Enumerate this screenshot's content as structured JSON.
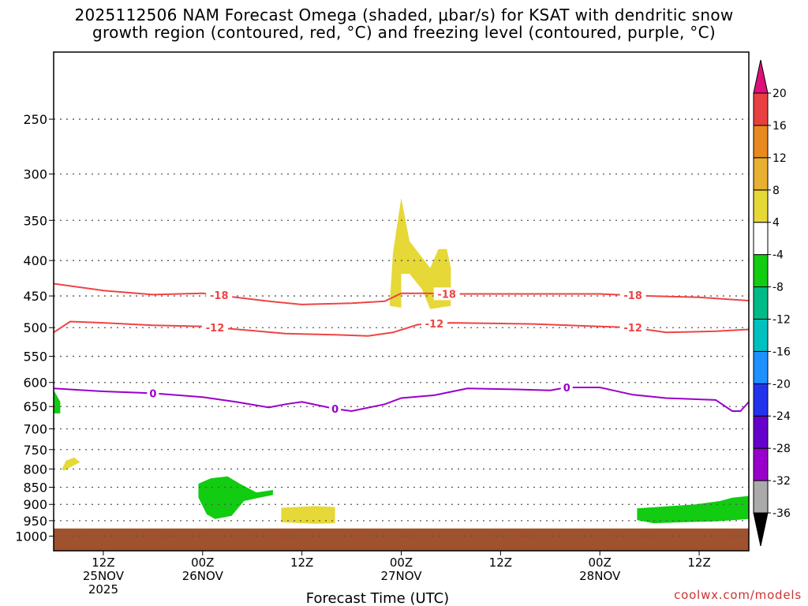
{
  "title_line1": "2025112506 NAM Forecast Omega (shaded, μbar/s) for KSAT with dendritic snow",
  "title_line2": "growth region (contoured, red, °C) and freezing level (contoured, purple, °C)",
  "credit": "coolwx.com/models",
  "chart_data": {
    "type": "time-height cross section",
    "xlabel": "Forecast Time (UTC)",
    "ylabel": "",
    "x_range_hours": [
      0,
      84
    ],
    "y_range_mb": [
      200,
      1050
    ],
    "y_ticks": [
      250,
      300,
      350,
      400,
      450,
      500,
      550,
      600,
      650,
      700,
      750,
      800,
      850,
      900,
      950,
      1000
    ],
    "x_ticks": [
      {
        "hour": 6,
        "label": "12Z",
        "sub1": "25NOV",
        "sub2": "2025"
      },
      {
        "hour": 18,
        "label": "00Z",
        "sub1": "26NOV",
        "sub2": ""
      },
      {
        "hour": 30,
        "label": "12Z",
        "sub1": "",
        "sub2": ""
      },
      {
        "hour": 42,
        "label": "00Z",
        "sub1": "27NOV",
        "sub2": ""
      },
      {
        "hour": 54,
        "label": "12Z",
        "sub1": "",
        "sub2": ""
      },
      {
        "hour": 66,
        "label": "00Z",
        "sub1": "28NOV",
        "sub2": ""
      },
      {
        "hour": 78,
        "label": "12Z",
        "sub1": "",
        "sub2": ""
      }
    ],
    "contours": [
      {
        "name": "dendritic -18C",
        "color": "#ee4444",
        "label": "-18",
        "points": [
          [
            0,
            432
          ],
          [
            6,
            442
          ],
          [
            12,
            448
          ],
          [
            18,
            446
          ],
          [
            26,
            458
          ],
          [
            30,
            463
          ],
          [
            36,
            461
          ],
          [
            40,
            458
          ],
          [
            42,
            446
          ],
          [
            45,
            446
          ],
          [
            48,
            447
          ],
          [
            60,
            447
          ],
          [
            66,
            447
          ],
          [
            72,
            450
          ],
          [
            78,
            452
          ],
          [
            84,
            457
          ]
        ],
        "label_hours": [
          20,
          47.5,
          70
        ]
      },
      {
        "name": "dendritic -12C",
        "color": "#ee4444",
        "label": "-12",
        "points": [
          [
            0,
            508
          ],
          [
            2,
            490
          ],
          [
            6,
            492
          ],
          [
            12,
            496
          ],
          [
            18,
            498
          ],
          [
            24,
            505
          ],
          [
            28,
            510
          ],
          [
            34,
            512
          ],
          [
            38,
            514
          ],
          [
            41,
            508
          ],
          [
            44,
            495
          ],
          [
            48,
            492
          ],
          [
            58,
            494
          ],
          [
            66,
            498
          ],
          [
            70,
            500
          ],
          [
            74,
            508
          ],
          [
            80,
            506
          ],
          [
            84,
            503
          ]
        ],
        "label_hours": [
          19.5,
          46,
          70
        ]
      },
      {
        "name": "freezing level 0C",
        "color": "#9900cc",
        "label": "0",
        "points": [
          [
            0,
            612
          ],
          [
            6,
            618
          ],
          [
            12,
            622
          ],
          [
            18,
            630
          ],
          [
            22,
            640
          ],
          [
            26,
            652
          ],
          [
            28,
            645
          ],
          [
            30,
            640
          ],
          [
            34,
            655
          ],
          [
            36,
            660
          ],
          [
            40,
            645
          ],
          [
            42,
            632
          ],
          [
            46,
            626
          ],
          [
            50,
            612
          ],
          [
            56,
            614
          ],
          [
            60,
            616
          ],
          [
            62,
            610
          ],
          [
            66,
            610
          ],
          [
            70,
            625
          ],
          [
            74,
            632
          ],
          [
            80,
            636
          ],
          [
            82,
            660
          ],
          [
            83,
            660
          ],
          [
            84,
            640
          ]
        ],
        "label_hours": [
          12,
          34,
          62
        ]
      }
    ],
    "shaded_regions": [
      {
        "name": "omega 4 to 8 upper",
        "color": "#e6d836",
        "value_range": [
          4,
          8
        ],
        "points": [
          [
            40.6,
            465
          ],
          [
            41.0,
            390
          ],
          [
            42.0,
            325
          ],
          [
            43.0,
            375
          ],
          [
            45.5,
            410
          ],
          [
            46.5,
            385
          ],
          [
            47.5,
            385
          ],
          [
            48.0,
            410
          ],
          [
            48.0,
            465
          ],
          [
            45.5,
            470
          ],
          [
            44.5,
            440
          ],
          [
            43.0,
            418
          ],
          [
            42.0,
            418
          ],
          [
            42.0,
            468
          ]
        ]
      },
      {
        "name": "omega 4 to 8 low-level",
        "color": "#e6d836",
        "value_range": [
          4,
          8
        ],
        "points": [
          [
            1.0,
            800
          ],
          [
            1.5,
            778
          ],
          [
            2.5,
            770
          ],
          [
            3.2,
            782
          ],
          [
            2.3,
            792
          ],
          [
            1.2,
            805
          ]
        ]
      },
      {
        "name": "omega 4 to 8 near surface",
        "color": "#e6d836",
        "value_range": [
          4,
          8
        ],
        "points": [
          [
            27.5,
            910
          ],
          [
            31.5,
            905
          ],
          [
            34,
            908
          ],
          [
            34,
            958
          ],
          [
            31.5,
            960
          ],
          [
            27.5,
            955
          ]
        ]
      },
      {
        "name": "omega -8 to -4 day1",
        "color": "#11cc11",
        "value_range": [
          -8,
          -4
        ],
        "points": [
          [
            17.5,
            840
          ],
          [
            19,
            825
          ],
          [
            21,
            820
          ],
          [
            22.5,
            840
          ],
          [
            24.5,
            865
          ],
          [
            26.5,
            858
          ],
          [
            26.5,
            872
          ],
          [
            24.5,
            882
          ],
          [
            23,
            890
          ],
          [
            21.5,
            935
          ],
          [
            19.5,
            945
          ],
          [
            18.5,
            930
          ],
          [
            17.5,
            880
          ]
        ]
      },
      {
        "name": "omega -8 to -4 day3",
        "color": "#11cc11",
        "value_range": [
          -8,
          -4
        ],
        "points": [
          [
            70.5,
            912
          ],
          [
            74,
            906
          ],
          [
            77.5,
            900
          ],
          [
            79,
            895
          ],
          [
            80.5,
            890
          ],
          [
            82,
            880
          ],
          [
            84,
            875
          ],
          [
            84,
            945
          ],
          [
            80,
            952
          ],
          [
            76,
            955
          ],
          [
            72.5,
            958
          ],
          [
            70.5,
            948
          ]
        ]
      },
      {
        "name": "omega -8 to -4 edge",
        "color": "#11cc11",
        "value_range": [
          -8,
          -4
        ],
        "points": [
          [
            0,
            615
          ],
          [
            0.8,
            640
          ],
          [
            0.8,
            665
          ],
          [
            0,
            665
          ]
        ]
      },
      {
        "name": "ground below surface",
        "color": "#a0522d",
        "value_range": [],
        "points": [
          [
            0,
            975
          ],
          [
            84,
            975
          ],
          [
            84,
            1050
          ],
          [
            0,
            1050
          ]
        ]
      }
    ],
    "colorbar": {
      "levels": [
        "-36",
        "-32",
        "-28",
        "-24",
        "-20",
        "-16",
        "-12",
        "-8",
        "-4",
        "4",
        "8",
        "12",
        "16",
        "20"
      ],
      "colors": [
        "#000000",
        "#aaaaaa",
        "#9900cc",
        "#6600cc",
        "#2233ee",
        "#1e90ff",
        "#00c0c0",
        "#00bb88",
        "#11cc11",
        "#ffffff",
        "#e6d836",
        "#e8b030",
        "#e88a20",
        "#e84040",
        "#dd1177"
      ]
    }
  }
}
